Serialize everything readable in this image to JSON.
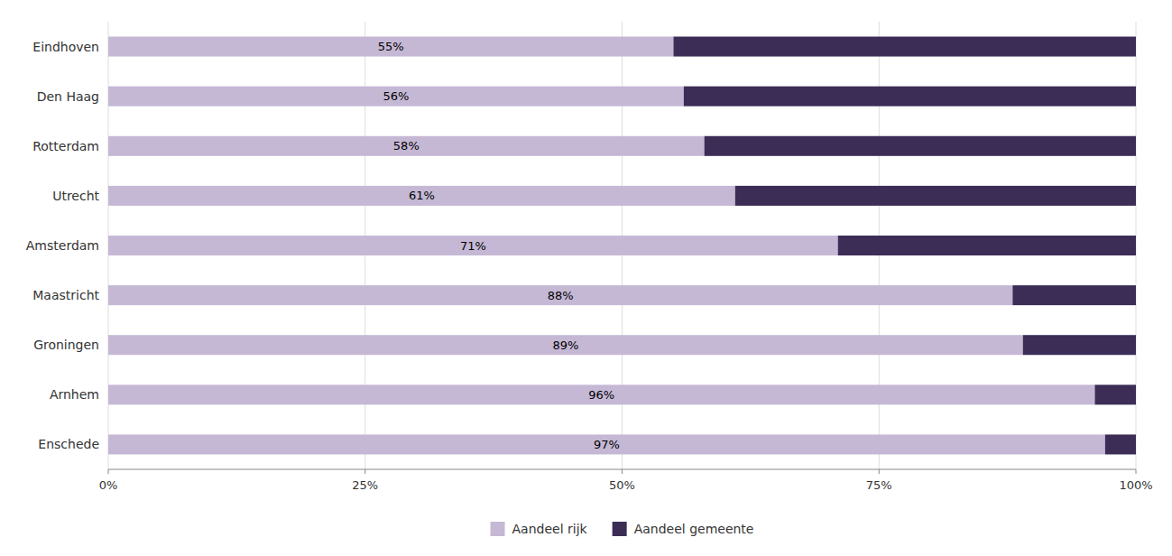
{
  "chart_data": {
    "type": "bar",
    "orientation": "horizontal",
    "stacked": true,
    "categories": [
      "Eindhoven",
      "Den Haag",
      "Rotterdam",
      "Utrecht",
      "Amsterdam",
      "Maastricht",
      "Groningen",
      "Arnhem",
      "Enschede"
    ],
    "series": [
      {
        "name": "Aandeel rijk",
        "color": "#c5b8d5",
        "values": [
          55,
          56,
          58,
          61,
          71,
          88,
          89,
          96,
          97
        ],
        "value_labels": [
          "55%",
          "56%",
          "58%",
          "61%",
          "71%",
          "88%",
          "89%",
          "96%",
          "97%"
        ]
      },
      {
        "name": "Aandeel gemeente",
        "color": "#3b2d56",
        "values": [
          45,
          44,
          42,
          39,
          29,
          12,
          11,
          4,
          3
        ]
      }
    ],
    "data_labels": true,
    "xlim": [
      0,
      100
    ],
    "xticks": [
      {
        "value": 0,
        "label": "0%"
      },
      {
        "value": 25,
        "label": "25%"
      },
      {
        "value": 50,
        "label": "50%"
      },
      {
        "value": 75,
        "label": "75%"
      },
      {
        "value": 100,
        "label": "100%"
      }
    ],
    "grid": true,
    "legend": "bottom"
  }
}
